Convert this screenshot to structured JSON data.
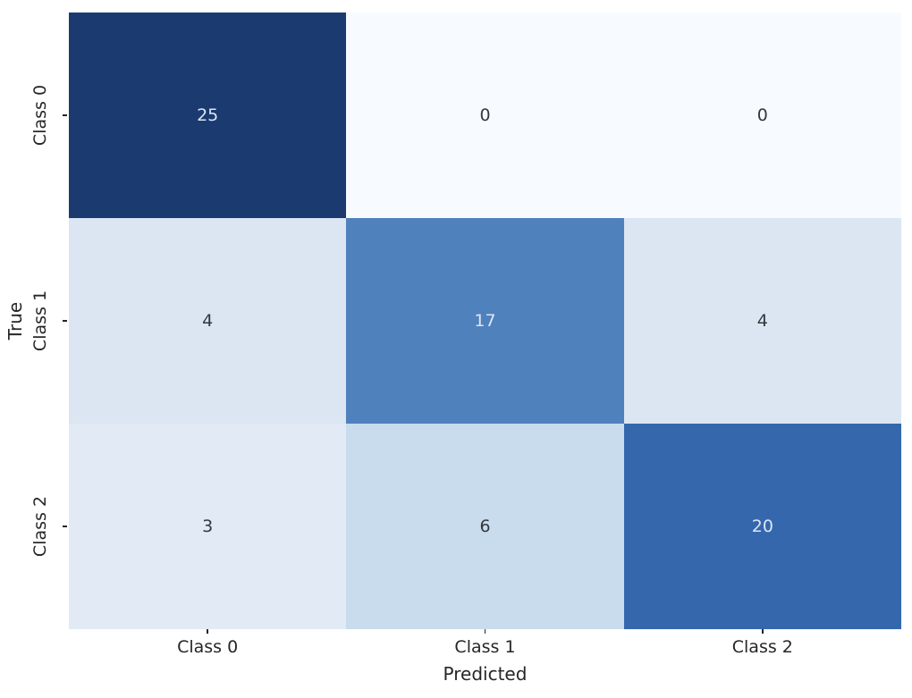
{
  "figure": {
    "background_color": "#ffffff",
    "tick_color": "#262626",
    "label_color": "#262626"
  },
  "chart_data": {
    "type": "heatmap",
    "subtype": "confusion-matrix",
    "title": "",
    "xlabel": "Predicted",
    "ylabel": "True",
    "x_categories": [
      "Class 0",
      "Class 1",
      "Class 2"
    ],
    "y_categories": [
      "Class 0",
      "Class 1",
      "Class 2"
    ],
    "matrix": [
      [
        25,
        0,
        0
      ],
      [
        4,
        17,
        4
      ],
      [
        3,
        6,
        20
      ]
    ],
    "colormap": "Blues",
    "value_range": [
      0,
      25
    ],
    "grid": false,
    "legend": "none",
    "annotation_color_dark_cells": "#dde6f5",
    "annotation_color_light_cells": "#33383f",
    "cells": [
      {
        "row": "Class 0",
        "col": "Class 0",
        "value": "25",
        "bg": "#1b3a70",
        "fg": "#dde6f5"
      },
      {
        "row": "Class 0",
        "col": "Class 1",
        "value": "0",
        "bg": "#f7fafe",
        "fg": "#33383f"
      },
      {
        "row": "Class 0",
        "col": "Class 2",
        "value": "0",
        "bg": "#f7fafe",
        "fg": "#33383f"
      },
      {
        "row": "Class 1",
        "col": "Class 0",
        "value": "4",
        "bg": "#dbe6f2",
        "fg": "#33383f"
      },
      {
        "row": "Class 1",
        "col": "Class 1",
        "value": "17",
        "bg": "#4f81bd",
        "fg": "#dde6f5"
      },
      {
        "row": "Class 1",
        "col": "Class 2",
        "value": "4",
        "bg": "#dbe6f2",
        "fg": "#33383f"
      },
      {
        "row": "Class 2",
        "col": "Class 0",
        "value": "3",
        "bg": "#e1eaf5",
        "fg": "#33383f"
      },
      {
        "row": "Class 2",
        "col": "Class 1",
        "value": "6",
        "bg": "#c8dcee",
        "fg": "#33383f"
      },
      {
        "row": "Class 2",
        "col": "Class 2",
        "value": "20",
        "bg": "#3567ad",
        "fg": "#dde6f5"
      }
    ]
  }
}
